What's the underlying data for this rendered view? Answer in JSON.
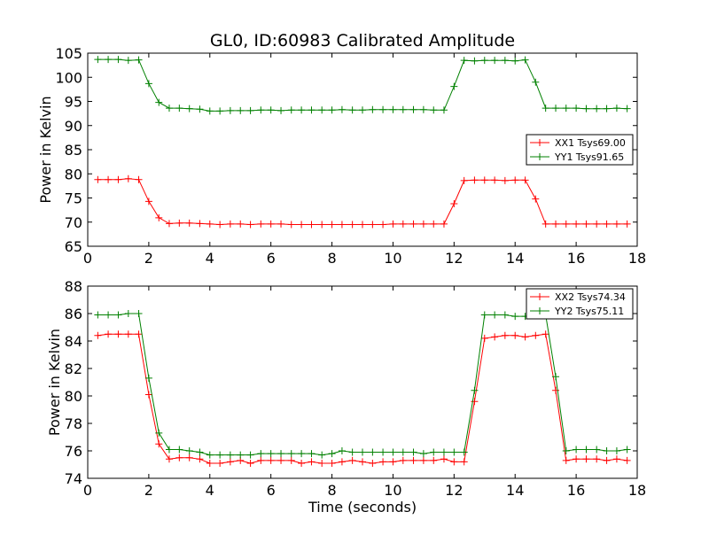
{
  "title": "GL0, ID:60983 Calibrated Amplitude",
  "chart_data": [
    {
      "type": "line",
      "ylabel": "Power in Kelvin",
      "xlabel": "",
      "xlim": [
        0,
        18
      ],
      "ylim": [
        65,
        105
      ],
      "xticks": [
        "0",
        "2",
        "4",
        "6",
        "8",
        "10",
        "12",
        "14",
        "16",
        "18"
      ],
      "yticks": [
        "65",
        "70",
        "75",
        "80",
        "85",
        "90",
        "95",
        "100",
        "105"
      ],
      "legend_position": "center-right",
      "x": [
        0.33,
        0.67,
        1.0,
        1.33,
        1.67,
        2.0,
        2.33,
        2.67,
        3.0,
        3.33,
        3.67,
        4.0,
        4.33,
        4.67,
        5.0,
        5.33,
        5.67,
        6.0,
        6.33,
        6.67,
        7.0,
        7.33,
        7.67,
        8.0,
        8.33,
        8.67,
        9.0,
        9.33,
        9.67,
        10.0,
        10.33,
        10.67,
        11.0,
        11.33,
        11.67,
        12.0,
        12.33,
        12.67,
        13.0,
        13.33,
        13.67,
        14.0,
        14.33,
        14.67,
        15.0,
        15.33,
        15.67,
        16.0,
        16.33,
        16.67,
        17.0,
        17.33,
        17.67
      ],
      "series": [
        {
          "name": "XX1 Tsys69.00",
          "color": "#ff0000",
          "values": [
            78.8,
            78.8,
            78.8,
            79.0,
            78.8,
            74.3,
            70.9,
            69.7,
            69.8,
            69.8,
            69.7,
            69.6,
            69.5,
            69.6,
            69.6,
            69.5,
            69.6,
            69.6,
            69.6,
            69.5,
            69.5,
            69.5,
            69.5,
            69.5,
            69.5,
            69.5,
            69.5,
            69.5,
            69.5,
            69.6,
            69.6,
            69.6,
            69.6,
            69.6,
            69.6,
            73.8,
            78.6,
            78.7,
            78.7,
            78.7,
            78.6,
            78.7,
            78.7,
            74.8,
            69.6,
            69.6,
            69.6,
            69.6,
            69.6,
            69.6,
            69.6,
            69.6,
            69.6
          ]
        },
        {
          "name": "YY1 Tsys91.65",
          "color": "#008000",
          "values": [
            103.7,
            103.7,
            103.7,
            103.5,
            103.6,
            98.7,
            94.8,
            93.6,
            93.6,
            93.5,
            93.4,
            93.0,
            93.0,
            93.1,
            93.1,
            93.1,
            93.2,
            93.2,
            93.1,
            93.2,
            93.2,
            93.2,
            93.2,
            93.2,
            93.3,
            93.2,
            93.2,
            93.3,
            93.3,
            93.3,
            93.3,
            93.3,
            93.3,
            93.2,
            93.2,
            98.1,
            103.5,
            103.4,
            103.5,
            103.5,
            103.5,
            103.4,
            103.6,
            99.0,
            93.6,
            93.6,
            93.6,
            93.6,
            93.5,
            93.5,
            93.5,
            93.6,
            93.5
          ]
        }
      ]
    },
    {
      "type": "line",
      "ylabel": "Power in Kelvin",
      "xlabel": "Time (seconds)",
      "xlim": [
        0,
        18
      ],
      "ylim": [
        74,
        88
      ],
      "xticks": [
        "0",
        "2",
        "4",
        "6",
        "8",
        "10",
        "12",
        "14",
        "16",
        "18"
      ],
      "yticks": [
        "74",
        "76",
        "78",
        "80",
        "82",
        "84",
        "86",
        "88"
      ],
      "legend_position": "top-right",
      "x": [
        0.33,
        0.67,
        1.0,
        1.33,
        1.67,
        2.0,
        2.33,
        2.67,
        3.0,
        3.33,
        3.67,
        4.0,
        4.33,
        4.67,
        5.0,
        5.33,
        5.67,
        6.0,
        6.33,
        6.67,
        7.0,
        7.33,
        7.67,
        8.0,
        8.33,
        8.67,
        9.0,
        9.33,
        9.67,
        10.0,
        10.33,
        10.67,
        11.0,
        11.33,
        11.67,
        12.0,
        12.33,
        12.67,
        13.0,
        13.33,
        13.67,
        14.0,
        14.33,
        14.67,
        15.0,
        15.33,
        15.67,
        16.0,
        16.33,
        16.67,
        17.0,
        17.33,
        17.67
      ],
      "series": [
        {
          "name": "XX2 Tsys74.34",
          "color": "#ff0000",
          "values": [
            84.4,
            84.5,
            84.5,
            84.5,
            84.5,
            80.1,
            76.5,
            75.4,
            75.5,
            75.5,
            75.4,
            75.1,
            75.1,
            75.2,
            75.3,
            75.1,
            75.3,
            75.3,
            75.3,
            75.3,
            75.1,
            75.2,
            75.1,
            75.1,
            75.2,
            75.3,
            75.2,
            75.1,
            75.2,
            75.2,
            75.3,
            75.3,
            75.3,
            75.3,
            75.4,
            75.2,
            75.2,
            79.6,
            84.2,
            84.3,
            84.4,
            84.4,
            84.3,
            84.4,
            84.5,
            80.4,
            75.3,
            75.4,
            75.4,
            75.4,
            75.3,
            75.4,
            75.3
          ]
        },
        {
          "name": "YY2 Tsys75.11",
          "color": "#008000",
          "values": [
            85.9,
            85.9,
            85.9,
            86.0,
            86.0,
            81.3,
            77.3,
            76.1,
            76.1,
            76.0,
            75.9,
            75.7,
            75.7,
            75.7,
            75.7,
            75.7,
            75.8,
            75.8,
            75.8,
            75.8,
            75.8,
            75.8,
            75.7,
            75.8,
            76.0,
            75.9,
            75.9,
            75.9,
            75.9,
            75.9,
            75.9,
            75.9,
            75.8,
            75.9,
            75.9,
            75.9,
            75.9,
            80.4,
            85.9,
            85.9,
            85.9,
            85.8,
            85.8,
            85.9,
            85.9,
            81.4,
            76.0,
            76.1,
            76.1,
            76.1,
            76.0,
            76.0,
            76.1
          ]
        }
      ]
    }
  ]
}
